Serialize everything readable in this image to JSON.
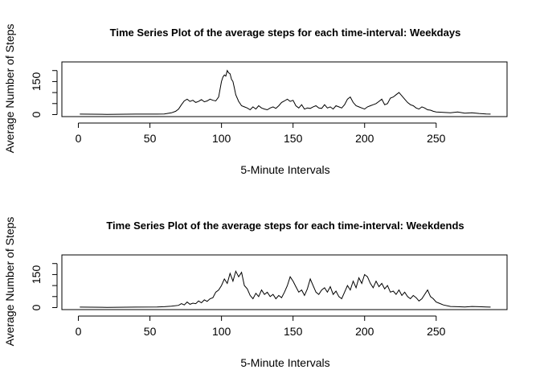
{
  "chart_data": [
    {
      "type": "line",
      "title": "Time Series Plot of the average steps for each time-interval: Weekdays",
      "xlabel": "5-Minute Intervals",
      "ylabel": "Average Number of Steps",
      "xlim": [
        0,
        288
      ],
      "ylim": [
        0,
        230
      ],
      "xticks": [
        0,
        50,
        100,
        150,
        200,
        250
      ],
      "yticks": [
        0,
        150
      ],
      "grid": false,
      "series": [
        {
          "x": [
            1,
            20,
            40,
            55,
            60,
            65,
            68,
            70,
            72,
            74,
            76,
            78,
            80,
            82,
            84,
            86,
            88,
            90,
            92,
            94,
            96,
            98,
            100,
            101,
            102,
            103,
            104,
            105,
            106,
            107,
            108,
            109,
            110,
            112,
            114,
            116,
            118,
            120,
            122,
            124,
            126,
            128,
            130,
            132,
            134,
            136,
            138,
            140,
            142,
            144,
            146,
            148,
            150,
            152,
            154,
            156,
            158,
            160,
            162,
            164,
            166,
            168,
            170,
            172,
            174,
            176,
            178,
            180,
            182,
            184,
            186,
            188,
            190,
            192,
            194,
            196,
            198,
            200,
            202,
            204,
            206,
            208,
            210,
            212,
            214,
            216,
            218,
            220,
            222,
            224,
            226,
            228,
            230,
            232,
            234,
            236,
            238,
            240,
            242,
            244,
            246,
            248,
            250,
            255,
            260,
            265,
            270,
            275,
            280,
            285,
            288
          ],
          "y": [
            2,
            1,
            2,
            2,
            3,
            8,
            15,
            25,
            45,
            62,
            70,
            60,
            65,
            55,
            60,
            68,
            58,
            62,
            70,
            65,
            62,
            80,
            150,
            170,
            180,
            175,
            200,
            190,
            185,
            160,
            150,
            120,
            90,
            60,
            40,
            35,
            30,
            22,
            35,
            25,
            40,
            30,
            25,
            22,
            30,
            35,
            28,
            40,
            55,
            62,
            70,
            60,
            65,
            40,
            30,
            45,
            25,
            30,
            28,
            35,
            40,
            30,
            28,
            45,
            30,
            35,
            25,
            40,
            35,
            30,
            45,
            70,
            80,
            55,
            40,
            35,
            30,
            25,
            35,
            40,
            45,
            50,
            60,
            70,
            45,
            50,
            75,
            80,
            90,
            100,
            85,
            70,
            55,
            45,
            40,
            30,
            25,
            35,
            30,
            22,
            20,
            15,
            12,
            10,
            8,
            12,
            6,
            8,
            5,
            3,
            2
          ]
        }
      ]
    },
    {
      "type": "line",
      "title": "Time Series Plot of the average steps for each time-interval: Weekdends",
      "xlabel": "5-Minute Intervals",
      "ylabel": "Average Number of Steps",
      "xlim": [
        0,
        288
      ],
      "ylim": [
        0,
        230
      ],
      "xticks": [
        0,
        50,
        100,
        150,
        200,
        250
      ],
      "yticks": [
        0,
        150
      ],
      "grid": false,
      "series": [
        {
          "x": [
            1,
            20,
            40,
            55,
            60,
            65,
            70,
            72,
            74,
            76,
            78,
            80,
            82,
            84,
            86,
            88,
            90,
            92,
            94,
            96,
            98,
            100,
            102,
            104,
            106,
            108,
            110,
            112,
            114,
            116,
            118,
            120,
            122,
            124,
            126,
            128,
            130,
            132,
            134,
            136,
            138,
            140,
            142,
            144,
            146,
            148,
            150,
            152,
            154,
            156,
            158,
            160,
            162,
            164,
            166,
            168,
            170,
            172,
            174,
            176,
            178,
            180,
            182,
            184,
            186,
            188,
            190,
            192,
            194,
            196,
            198,
            200,
            202,
            204,
            206,
            208,
            210,
            212,
            214,
            216,
            218,
            220,
            222,
            224,
            226,
            228,
            230,
            232,
            234,
            236,
            238,
            240,
            242,
            244,
            246,
            248,
            250,
            252,
            255,
            260,
            265,
            270,
            275,
            280,
            285,
            288
          ],
          "y": [
            2,
            1,
            2,
            3,
            4,
            6,
            10,
            18,
            12,
            25,
            15,
            20,
            18,
            30,
            22,
            35,
            28,
            40,
            45,
            70,
            80,
            100,
            130,
            110,
            155,
            120,
            165,
            140,
            160,
            100,
            85,
            55,
            40,
            65,
            50,
            80,
            60,
            70,
            50,
            60,
            40,
            55,
            45,
            70,
            100,
            140,
            120,
            95,
            70,
            80,
            55,
            85,
            130,
            100,
            70,
            60,
            80,
            90,
            70,
            95,
            60,
            75,
            50,
            40,
            70,
            100,
            80,
            120,
            90,
            135,
            110,
            150,
            140,
            110,
            90,
            120,
            95,
            110,
            85,
            100,
            70,
            75,
            60,
            80,
            55,
            70,
            50,
            40,
            55,
            45,
            30,
            40,
            60,
            80,
            50,
            40,
            25,
            20,
            12,
            5,
            4,
            3,
            5,
            4,
            3,
            2
          ]
        }
      ]
    }
  ]
}
